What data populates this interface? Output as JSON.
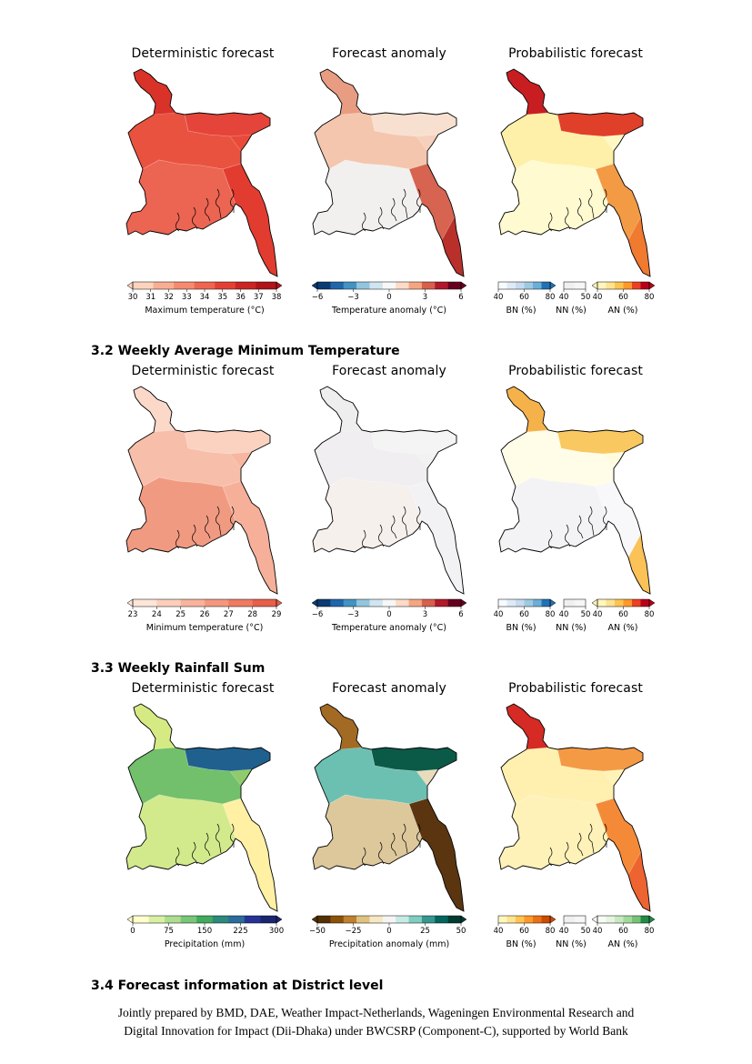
{
  "sections": [
    {
      "heading": "",
      "titles": [
        "Deterministic forecast",
        "Forecast anomaly",
        "Probabilistic forecast"
      ],
      "colorbars": {
        "det": {
          "label": "Maximum temperature (°C)",
          "ticks": [
            "30",
            "31",
            "32",
            "33",
            "34",
            "35",
            "36",
            "37",
            "38"
          ]
        },
        "anom": {
          "label": "Temperature anomaly (°C)",
          "ticks": [
            "−6",
            "−3",
            "0",
            "3",
            "6"
          ]
        },
        "prob": {
          "bn_ticks": [
            "40",
            "60",
            "80"
          ],
          "nn_ticks": [
            "40",
            "50"
          ],
          "an_ticks": [
            "40",
            "60",
            "80"
          ],
          "bn_label": "BN (%)",
          "nn_label": "NN (%)",
          "an_label": "AN (%)"
        }
      }
    },
    {
      "heading": "3.2 Weekly Average Minimum Temperature",
      "titles": [
        "Deterministic forecast",
        "Forecast anomaly",
        "Probabilistic forecast"
      ],
      "colorbars": {
        "det": {
          "label": "Minimum temperature (°C)",
          "ticks": [
            "23",
            "24",
            "25",
            "26",
            "27",
            "28",
            "29"
          ]
        },
        "anom": {
          "label": "Temperature anomaly (°C)",
          "ticks": [
            "−6",
            "−3",
            "0",
            "3",
            "6"
          ]
        },
        "prob": {
          "bn_ticks": [
            "40",
            "60",
            "80"
          ],
          "nn_ticks": [
            "40",
            "50"
          ],
          "an_ticks": [
            "40",
            "60",
            "80"
          ],
          "bn_label": "BN (%)",
          "nn_label": "NN (%)",
          "an_label": "AN (%)"
        }
      }
    },
    {
      "heading": "3.3 Weekly Rainfall Sum",
      "titles": [
        "Deterministic forecast",
        "Forecast anomaly",
        "Probabilistic forecast"
      ],
      "colorbars": {
        "det": {
          "label": "Precipitation (mm)",
          "ticks": [
            "0",
            "75",
            "150",
            "225",
            "300"
          ]
        },
        "anom": {
          "label": "Precipitation anomaly (mm)",
          "ticks": [
            "−50",
            "−25",
            "0",
            "25",
            "50"
          ]
        },
        "prob": {
          "bn_ticks": [
            "40",
            "60",
            "80"
          ],
          "nn_ticks": [
            "40",
            "50"
          ],
          "an_ticks": [
            "40",
            "60",
            "80"
          ],
          "bn_label": "BN (%)",
          "nn_label": "NN (%)",
          "an_label": "AN (%)"
        }
      }
    }
  ],
  "section_4_heading": "3.4 Forecast information at District level",
  "footer": {
    "line1": "Jointly prepared by BMD, DAE, Weather Impact-Netherlands, Wageningen Environmental Research and",
    "line2": "Digital Innovation for Impact (Dii-Dhaka) under BWCSRP (Component-C), supported by World Bank"
  },
  "colors": {
    "maxtemp": "#e8483a",
    "mintemp": "#f4a890",
    "anom_warm": "#f6cdb8",
    "anom_neutral": "#f0f0f0",
    "prob_an": "#f5a040",
    "prob_yellow": "#fff5b8",
    "rain_blue": "#22638f",
    "rain_green": "#8fcb6a",
    "rain_yellow": "#e8f0a0",
    "anom_green": "#0b5a48",
    "anom_brown": "#5a3510"
  }
}
